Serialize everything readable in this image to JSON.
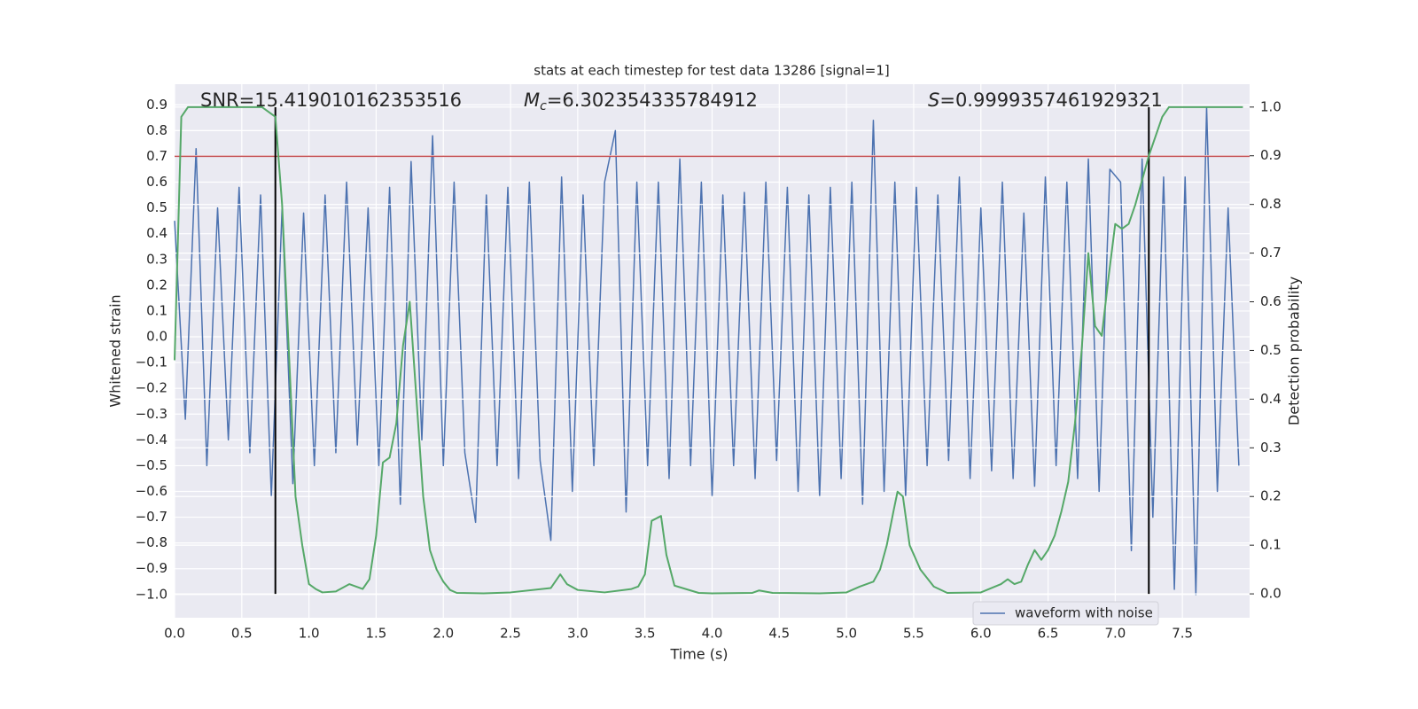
{
  "chart_data": {
    "type": "line",
    "title": "stats at each timestep for test data 13286 [signal=1]",
    "xlabel": "Time (s)",
    "ylabel": "Whitened strain",
    "y2label": "Detection probability",
    "xlim": [
      0,
      8
    ],
    "ylim": [
      -1.09,
      0.98
    ],
    "y2lim": [
      -0.049,
      1.047
    ],
    "xticks": [
      {
        "value": 0,
        "label": "0.0"
      },
      0.5,
      {
        "value": 1,
        "label": "1.0"
      },
      1.5,
      {
        "value": 2,
        "label": "2.0"
      },
      2.5,
      {
        "value": 3,
        "label": "3.0"
      },
      3.5,
      {
        "value": 4,
        "label": "4.0"
      },
      4.5,
      {
        "value": 5,
        "label": "5.0"
      },
      5.5,
      {
        "value": 6,
        "label": "6.0"
      },
      6.5,
      {
        "value": 7,
        "label": "7.0"
      },
      7.5
    ],
    "yticks": [
      {
        "value": -1,
        "label": "−1.0"
      },
      {
        "value": -0.9,
        "label": "−0.9"
      },
      {
        "value": -0.8,
        "label": "−0.8"
      },
      {
        "value": -0.7,
        "label": "−0.7"
      },
      {
        "value": -0.6,
        "label": "−0.6"
      },
      {
        "value": -0.5,
        "label": "−0.5"
      },
      {
        "value": -0.4,
        "label": "−0.4"
      },
      {
        "value": -0.3,
        "label": "−0.3"
      },
      {
        "value": -0.2,
        "label": "−0.2"
      },
      {
        "value": -0.1,
        "label": "−0.1"
      },
      {
        "value": 0,
        "label": "0.0"
      },
      0.1,
      0.2,
      0.3,
      0.4,
      0.5,
      0.6,
      0.7,
      0.8,
      0.9
    ],
    "y2ticks": [
      {
        "value": 0,
        "label": "0.0"
      },
      0.1,
      0.2,
      0.3,
      0.4,
      0.5,
      0.6,
      0.7,
      0.8,
      0.9,
      {
        "value": 1,
        "label": "1.0"
      }
    ],
    "grid": true,
    "legend": "lower right",
    "annotations": [
      {
        "text": "SNR=15.419010162353516"
      },
      {
        "symbol": "M",
        "subscript": "c",
        "text": "=6.302354335784912"
      },
      {
        "symbol": "S",
        "text": "=0.9999357461929321"
      }
    ],
    "hline": {
      "y": 0.7,
      "color": "#c44e52"
    },
    "vlines": {
      "x": [
        0.75,
        7.25
      ],
      "y2min": 0,
      "y2max": 1,
      "color": "#000000"
    },
    "series": [
      {
        "name": "waveform with noise",
        "color": "#4c72b0",
        "x": [
          0,
          0.08,
          0.16,
          0.24,
          0.32,
          0.4,
          0.48,
          0.56,
          0.64,
          0.72,
          0.8,
          0.88,
          0.96,
          1.04,
          1.12,
          1.2,
          1.28,
          1.36,
          1.44,
          1.52,
          1.6,
          1.68,
          1.76,
          1.84,
          1.92,
          2,
          2.08,
          2.16,
          2.24,
          2.32,
          2.4,
          2.48,
          2.56,
          2.64,
          2.72,
          2.8,
          2.88,
          2.96,
          3.04,
          3.12,
          3.2,
          3.28,
          3.36,
          3.44,
          3.52,
          3.6,
          3.68,
          3.76,
          3.84,
          3.92,
          4,
          4.08,
          4.16,
          4.24,
          4.32,
          4.4,
          4.48,
          4.56,
          4.64,
          4.72,
          4.8,
          4.88,
          4.96,
          5.04,
          5.12,
          5.2,
          5.28,
          5.36,
          5.44,
          5.52,
          5.6,
          5.68,
          5.76,
          5.84,
          5.92,
          6,
          6.08,
          6.16,
          6.24,
          6.32,
          6.4,
          6.48,
          6.56,
          6.64,
          6.72,
          6.8,
          6.88,
          6.96,
          7.04,
          7.12,
          7.2,
          7.28,
          7.36,
          7.44,
          7.52,
          7.6,
          7.68,
          7.76,
          7.84,
          7.92
        ],
        "values": [
          0.45,
          -0.32,
          0.73,
          -0.5,
          0.5,
          -0.4,
          0.58,
          -0.45,
          0.55,
          -0.62,
          0.5,
          -0.57,
          0.48,
          -0.5,
          0.55,
          -0.45,
          0.6,
          -0.42,
          0.5,
          -0.5,
          0.58,
          -0.65,
          0.68,
          -0.4,
          0.78,
          -0.5,
          0.6,
          -0.45,
          -0.72,
          0.55,
          -0.5,
          0.58,
          -0.55,
          0.6,
          -0.48,
          -0.79,
          0.62,
          -0.6,
          0.55,
          -0.5,
          0.6,
          0.8,
          -0.68,
          0.6,
          -0.5,
          0.6,
          -0.55,
          0.69,
          -0.5,
          0.6,
          -0.62,
          0.55,
          -0.5,
          0.56,
          -0.55,
          0.6,
          -0.48,
          0.58,
          -0.6,
          0.55,
          -0.62,
          0.58,
          -0.55,
          0.6,
          -0.65,
          0.84,
          -0.6,
          0.6,
          -0.62,
          0.58,
          -0.5,
          0.55,
          -0.48,
          0.62,
          -0.55,
          0.5,
          -0.52,
          0.6,
          -0.55,
          0.48,
          -0.58,
          0.62,
          -0.5,
          0.6,
          -0.55,
          0.69,
          -0.6,
          0.65,
          0.6,
          -0.83,
          0.69,
          -0.7,
          0.62,
          -0.98,
          0.62,
          -1.0,
          0.89,
          -0.6,
          0.5,
          -0.5
        ]
      },
      {
        "color": "#55a868",
        "axis": "y2",
        "x": [
          0,
          0.05,
          0.1,
          0.65,
          0.7,
          0.75,
          0.8,
          0.85,
          0.9,
          0.95,
          1.0,
          1.05,
          1.1,
          1.2,
          1.3,
          1.4,
          1.45,
          1.5,
          1.55,
          1.6,
          1.65,
          1.7,
          1.75,
          1.8,
          1.85,
          1.9,
          1.95,
          2.0,
          2.05,
          2.1,
          2.3,
          2.5,
          2.8,
          2.87,
          2.92,
          3.0,
          3.2,
          3.4,
          3.45,
          3.5,
          3.55,
          3.62,
          3.66,
          3.72,
          3.9,
          4.0,
          4.3,
          4.35,
          4.45,
          4.8,
          5.0,
          5.1,
          5.2,
          5.25,
          5.3,
          5.35,
          5.38,
          5.42,
          5.47,
          5.55,
          5.65,
          5.75,
          6.0,
          6.15,
          6.2,
          6.25,
          6.3,
          6.35,
          6.4,
          6.45,
          6.5,
          6.55,
          6.6,
          6.65,
          6.7,
          6.75,
          6.8,
          6.85,
          6.9,
          6.95,
          7.0,
          7.05,
          7.1,
          7.15,
          7.2,
          7.25,
          7.3,
          7.35,
          7.4,
          7.95
        ],
        "values": [
          0.48,
          0.98,
          1.0,
          1.0,
          0.99,
          0.98,
          0.8,
          0.5,
          0.2,
          0.1,
          0.02,
          0.01,
          0.003,
          0.005,
          0.02,
          0.01,
          0.03,
          0.12,
          0.27,
          0.28,
          0.35,
          0.51,
          0.6,
          0.4,
          0.2,
          0.09,
          0.05,
          0.025,
          0.008,
          0.002,
          0.001,
          0.003,
          0.012,
          0.04,
          0.02,
          0.008,
          0.003,
          0.01,
          0.015,
          0.04,
          0.15,
          0.16,
          0.08,
          0.017,
          0.002,
          0.001,
          0.002,
          0.007,
          0.002,
          0.001,
          0.003,
          0.015,
          0.025,
          0.05,
          0.1,
          0.17,
          0.21,
          0.2,
          0.1,
          0.05,
          0.015,
          0.002,
          0.003,
          0.02,
          0.03,
          0.02,
          0.025,
          0.06,
          0.09,
          0.07,
          0.09,
          0.12,
          0.17,
          0.23,
          0.35,
          0.5,
          0.7,
          0.55,
          0.53,
          0.65,
          0.76,
          0.75,
          0.76,
          0.8,
          0.85,
          0.9,
          0.94,
          0.98,
          1.0,
          1.0
        ]
      }
    ]
  }
}
